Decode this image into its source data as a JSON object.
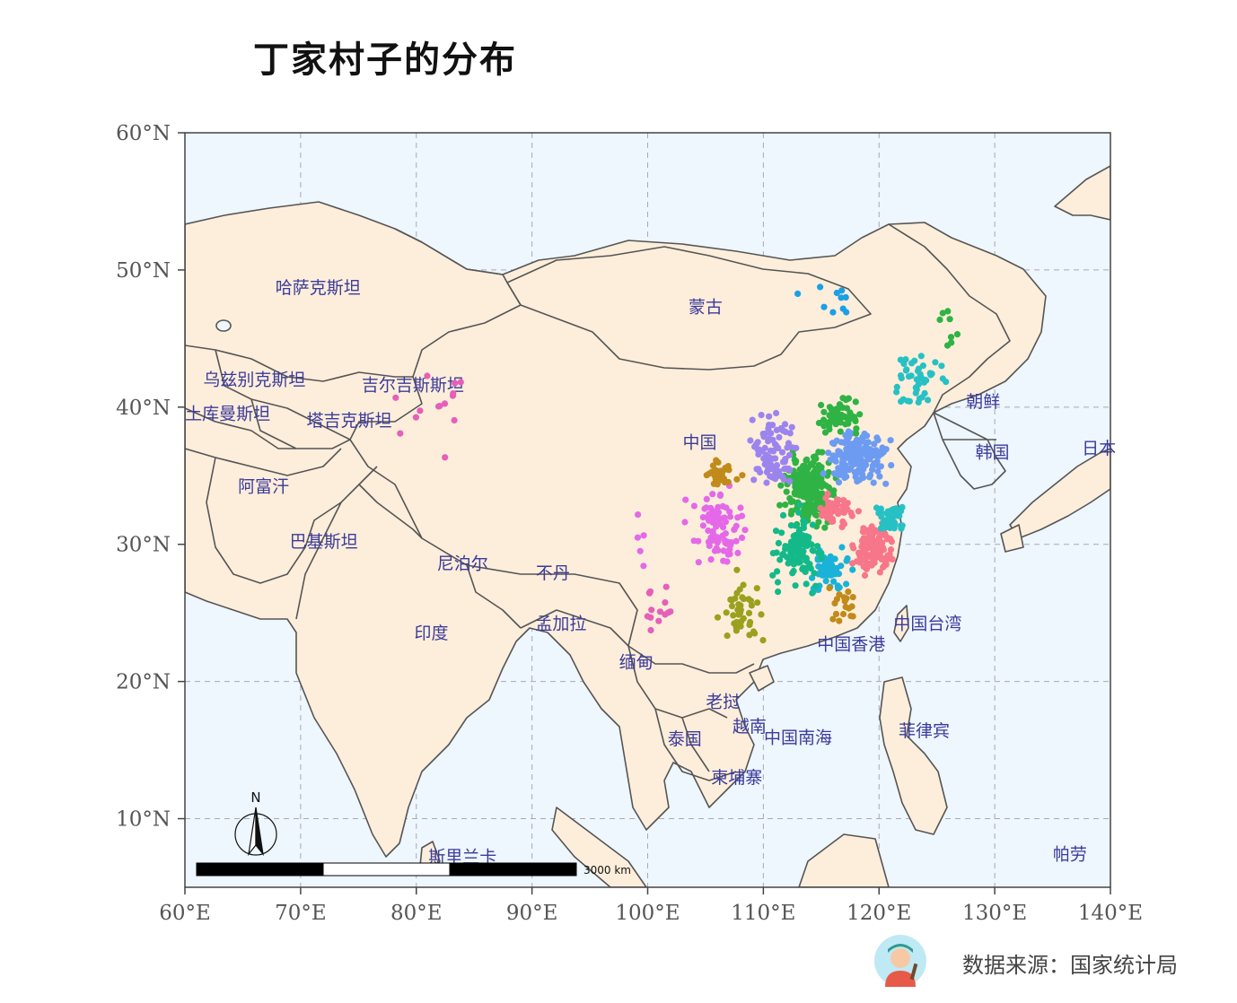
{
  "title": "丁家村子的分布",
  "source": "数据来源：国家统计局",
  "north_label": "N",
  "scale_label": "3000 km",
  "colors": {
    "land": "#fdeedb",
    "ocean": "#eef6fe",
    "border": "#555555",
    "label": "#3b3b9a"
  },
  "chart_data": {
    "type": "scatter",
    "title": "丁家村子的分布",
    "xlabel": "",
    "ylabel": "",
    "xlim": [
      60,
      140
    ],
    "ylim": [
      5,
      60
    ],
    "grid": true,
    "xticks": [
      "60°E",
      "70°E",
      "80°E",
      "90°E",
      "100°E",
      "110°E",
      "120°E",
      "130°E",
      "140°E"
    ],
    "yticks": [
      "10°N",
      "20°N",
      "30°N",
      "40°N",
      "50°N",
      "60°N"
    ],
    "country_labels": [
      {
        "name": "哈萨克斯坦",
        "lon": 71.5,
        "lat": 48.3
      },
      {
        "name": "蒙古",
        "lon": 105.0,
        "lat": 46.9
      },
      {
        "name": "乌兹别克斯坦",
        "lon": 66.0,
        "lat": 41.6
      },
      {
        "name": "吉尔吉斯斯坦",
        "lon": 79.7,
        "lat": 41.2
      },
      {
        "name": "土库曼斯坦",
        "lon": 63.7,
        "lat": 39.1
      },
      {
        "name": "塔吉克斯坦",
        "lon": 74.2,
        "lat": 38.6
      },
      {
        "name": "阿富汗",
        "lon": 66.8,
        "lat": 33.8
      },
      {
        "name": "巴基斯坦",
        "lon": 72.0,
        "lat": 29.8
      },
      {
        "name": "中国",
        "lon": 104.5,
        "lat": 37.0
      },
      {
        "name": "朝鲜",
        "lon": 129.0,
        "lat": 40.0
      },
      {
        "name": "韩国",
        "lon": 129.8,
        "lat": 36.3
      },
      {
        "name": "日本",
        "lon": 139.0,
        "lat": 36.6
      },
      {
        "name": "尼泊尔",
        "lon": 84.0,
        "lat": 28.2
      },
      {
        "name": "不丹",
        "lon": 91.8,
        "lat": 27.5
      },
      {
        "name": "孟加拉",
        "lon": 92.5,
        "lat": 23.8
      },
      {
        "name": "印度",
        "lon": 81.3,
        "lat": 23.1
      },
      {
        "name": "缅甸",
        "lon": 99.0,
        "lat": 21.0
      },
      {
        "name": "中国台湾",
        "lon": 124.2,
        "lat": 23.8
      },
      {
        "name": "中国香港",
        "lon": 117.6,
        "lat": 22.3
      },
      {
        "name": "老挝",
        "lon": 106.5,
        "lat": 18.1
      },
      {
        "name": "越南",
        "lon": 108.8,
        "lat": 16.3
      },
      {
        "name": "泰国",
        "lon": 103.2,
        "lat": 15.4
      },
      {
        "name": "中国南海",
        "lon": 113.0,
        "lat": 15.5
      },
      {
        "name": "菲律宾",
        "lon": 123.9,
        "lat": 16.0
      },
      {
        "name": "柬埔寨",
        "lon": 107.7,
        "lat": 12.6
      },
      {
        "name": "斯里兰卡",
        "lon": 84.0,
        "lat": 6.8
      },
      {
        "name": "帕劳",
        "lon": 136.5,
        "lat": 7.0
      }
    ],
    "series": [
      {
        "color": "#2fb344",
        "center": [
          114.0,
          34.0
        ],
        "spread": [
          1.8,
          2.0
        ],
        "count": 220
      },
      {
        "color": "#6d9bf2",
        "center": [
          118.0,
          36.2
        ],
        "spread": [
          2.2,
          1.6
        ],
        "count": 170
      },
      {
        "color": "#f7768a",
        "center": [
          119.5,
          29.8
        ],
        "spread": [
          1.3,
          1.6
        ],
        "count": 120
      },
      {
        "color": "#f7768a",
        "center": [
          116.5,
          32.5
        ],
        "spread": [
          1.4,
          1.2
        ],
        "count": 45
      },
      {
        "color": "#27c1c4",
        "center": [
          121.0,
          31.8
        ],
        "spread": [
          1.1,
          1.0
        ],
        "count": 45
      },
      {
        "color": "#27c1c4",
        "center": [
          123.5,
          41.8
        ],
        "spread": [
          2.2,
          1.8
        ],
        "count": 45
      },
      {
        "color": "#1ab2d8",
        "center": [
          115.7,
          28.3
        ],
        "spread": [
          1.4,
          1.6
        ],
        "count": 60
      },
      {
        "color": "#14b98a",
        "center": [
          113.0,
          29.5
        ],
        "spread": [
          1.8,
          2.1
        ],
        "count": 110
      },
      {
        "color": "#9c84ef",
        "center": [
          111.0,
          37.0
        ],
        "spread": [
          1.6,
          2.2
        ],
        "count": 85
      },
      {
        "color": "#e469e8",
        "center": [
          106.0,
          31.0
        ],
        "spread": [
          2.0,
          2.4
        ],
        "count": 85
      },
      {
        "color": "#c08b1a",
        "center": [
          106.0,
          35.2
        ],
        "spread": [
          1.4,
          0.9
        ],
        "count": 30
      },
      {
        "color": "#9aa11e",
        "center": [
          108.3,
          25.0
        ],
        "spread": [
          1.5,
          2.0
        ],
        "count": 40
      },
      {
        "color": "#2fb344",
        "center": [
          116.5,
          39.5
        ],
        "spread": [
          1.8,
          1.2
        ],
        "count": 55
      },
      {
        "color": "#2fb344",
        "center": [
          125.8,
          45.5
        ],
        "spread": [
          0.8,
          1.8
        ],
        "count": 8
      },
      {
        "color": "#1aa0e6",
        "center": [
          116.0,
          48.0
        ],
        "spread": [
          3.5,
          1.5
        ],
        "count": 10
      },
      {
        "color": "#c08b1a",
        "center": [
          117.0,
          25.5
        ],
        "spread": [
          1.2,
          1.2
        ],
        "count": 18
      },
      {
        "color": "#e65fb8",
        "center": [
          82.0,
          40.0
        ],
        "spread": [
          3.5,
          3.5
        ],
        "count": 14
      },
      {
        "color": "#e65fb8",
        "center": [
          100.5,
          25.5
        ],
        "spread": [
          1.4,
          2.0
        ],
        "count": 14
      },
      {
        "color": "#e469e8",
        "center": [
          99.5,
          30.5
        ],
        "spread": [
          0.8,
          1.5
        ],
        "count": 5
      }
    ]
  }
}
